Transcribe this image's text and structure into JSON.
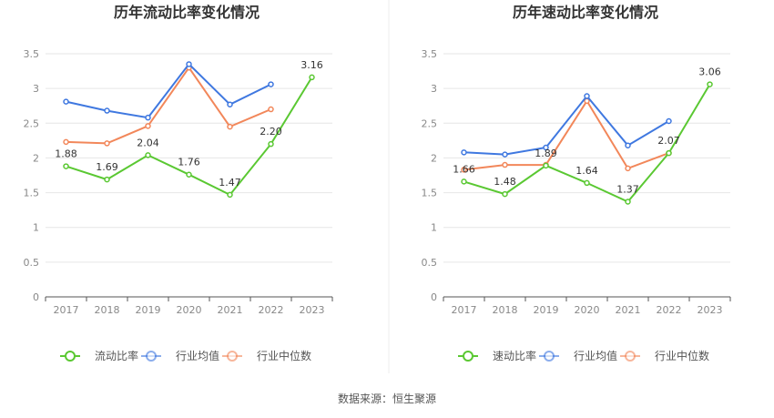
{
  "source_label": "数据来源：恒生聚源",
  "colors": {
    "company": "#5ac832",
    "industry_avg": "#3f78e0",
    "industry_median": "#f2875a",
    "grid": "#e6e6e6",
    "axis": "#555555"
  },
  "chart_data": [
    {
      "type": "line",
      "title": "历年流动比率变化情况",
      "categories": [
        "2017",
        "2018",
        "2019",
        "2020",
        "2021",
        "2022",
        "2023"
      ],
      "ylim": [
        0,
        3.5
      ],
      "yticks": [
        0,
        0.5,
        1,
        1.5,
        2,
        2.5,
        3,
        3.5
      ],
      "ytick_labels": [
        "0",
        "0.5",
        "1",
        "1.5",
        "2",
        "2.5",
        "3",
        "3.5"
      ],
      "grid": true,
      "legend_position": "bottom",
      "series": [
        {
          "name": "流动比率",
          "color_key": "company",
          "values": [
            1.88,
            1.69,
            2.04,
            1.76,
            1.47,
            2.2,
            3.16
          ],
          "labels": [
            "1.88",
            "1.69",
            "2.04",
            "1.76",
            "1.47",
            "2.20",
            "3.16"
          ]
        },
        {
          "name": "行业均值",
          "color_key": "industry_avg",
          "values": [
            2.81,
            2.68,
            2.58,
            3.35,
            2.77,
            3.06,
            null
          ]
        },
        {
          "name": "行业中位数",
          "color_key": "industry_median",
          "values": [
            2.23,
            2.21,
            2.46,
            3.3,
            2.45,
            2.7,
            null
          ]
        }
      ]
    },
    {
      "type": "line",
      "title": "历年速动比率变化情况",
      "categories": [
        "2017",
        "2018",
        "2019",
        "2020",
        "2021",
        "2022",
        "2023"
      ],
      "ylim": [
        0,
        3.5
      ],
      "yticks": [
        0,
        0.5,
        1,
        1.5,
        2,
        2.5,
        3,
        3.5
      ],
      "ytick_labels": [
        "0",
        "0.5",
        "1",
        "1.5",
        "2",
        "2.5",
        "3",
        "3.5"
      ],
      "grid": true,
      "legend_position": "bottom",
      "series": [
        {
          "name": "速动比率",
          "color_key": "company",
          "values": [
            1.66,
            1.48,
            1.89,
            1.64,
            1.37,
            2.07,
            3.06
          ],
          "labels": [
            "1.66",
            "1.48",
            "1.89",
            "1.64",
            "1.37",
            "2.07",
            "3.06"
          ]
        },
        {
          "name": "行业均值",
          "color_key": "industry_avg",
          "values": [
            2.08,
            2.05,
            2.15,
            2.89,
            2.18,
            2.53,
            null
          ]
        },
        {
          "name": "行业中位数",
          "color_key": "industry_median",
          "values": [
            1.83,
            1.9,
            1.9,
            2.82,
            1.85,
            2.07,
            null
          ]
        }
      ]
    }
  ]
}
